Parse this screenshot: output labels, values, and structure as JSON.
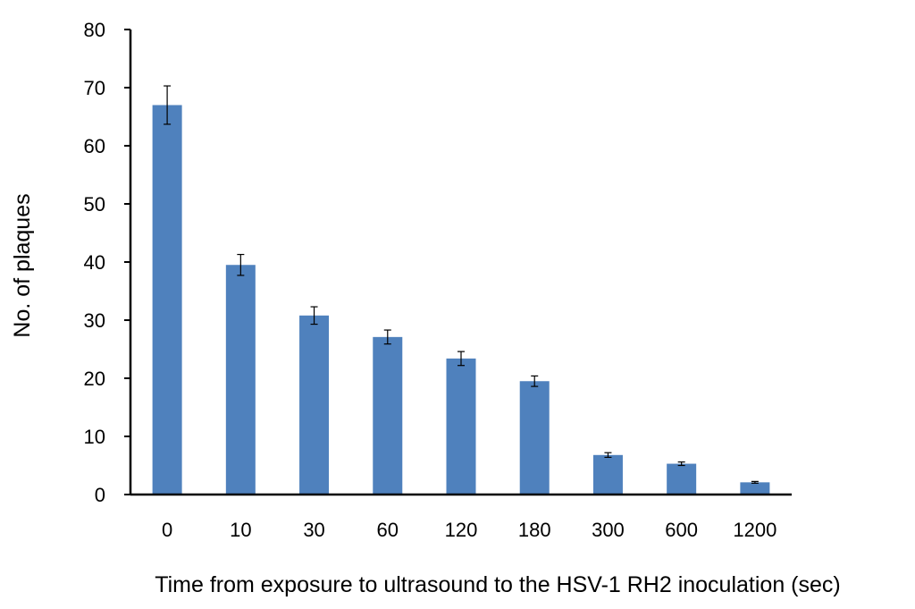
{
  "chart_data": {
    "type": "bar",
    "title": "",
    "xlabel": "Time from exposure to ultrasound to the HSV-1 RH2 inoculation (sec)",
    "ylabel": "No. of plaques",
    "categories": [
      "0",
      "10",
      "30",
      "60",
      "120",
      "180",
      "300",
      "600",
      "1200"
    ],
    "values": [
      67,
      39.5,
      30.8,
      27.1,
      23.4,
      19.5,
      6.8,
      5.3,
      2.1
    ],
    "errors": [
      3.3,
      1.8,
      1.5,
      1.2,
      1.2,
      0.9,
      0.4,
      0.3,
      0.15
    ],
    "ylim": [
      0,
      80
    ],
    "yticks": [
      "0",
      "10",
      "20",
      "30",
      "40",
      "50",
      "60",
      "70",
      "80"
    ],
    "grid": false,
    "legend": "none",
    "colors": {
      "bar": "#4f81bd",
      "axis": "#000000"
    }
  }
}
